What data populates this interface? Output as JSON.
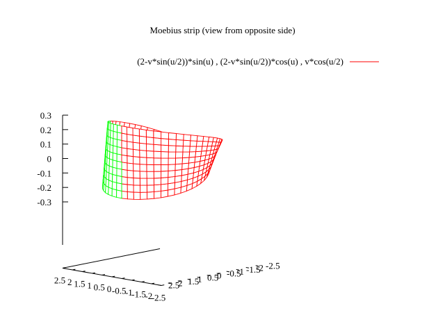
{
  "chart_data": {
    "type": "surface",
    "title": "Moebius strip (view from opposite side)",
    "legend": {
      "placement": "top-right",
      "entries": [
        {
          "label": "(2-v*sin(u/2))*sin(u) , (2-v*sin(u/2))*cos(u) , v*cos(u/2)",
          "color": "#ff0000"
        }
      ]
    },
    "series": [
      {
        "parametric": true,
        "x_expr": "(2-v*sin(u/2))*sin(u)",
        "y_expr": "(2-v*sin(u/2))*cos(u)",
        "z_expr": "v*cos(u/2)",
        "u_range": [
          0,
          6.283185
        ],
        "v_range": [
          -0.25,
          0.25
        ],
        "u_samples": 48,
        "v_samples": 10,
        "front_color": "#ff0000",
        "back_color": "#00ff00"
      }
    ],
    "x_axis": {
      "range": [
        2.5,
        -2.5
      ],
      "ticks": [
        "2.5",
        "2",
        "1.5",
        "1",
        "0.5",
        "0",
        "-0.5",
        "-1",
        "-1.5",
        "-2",
        "-2.5"
      ],
      "tick_values": [
        2.5,
        2,
        1.5,
        1,
        0.5,
        0,
        -0.5,
        -1,
        -1.5,
        -2,
        -2.5
      ]
    },
    "y_axis": {
      "range": [
        2.5,
        -2.5
      ],
      "ticks": [
        "2.5",
        "2",
        "1.5",
        "1",
        "0.5",
        "0",
        "-0.5",
        "-1",
        "-1.5",
        "-2",
        "-2.5"
      ],
      "tick_values": [
        2.5,
        2,
        1.5,
        1,
        0.5,
        0,
        -0.5,
        -1,
        -1.5,
        -2,
        -2.5
      ]
    },
    "z_axis": {
      "range": [
        -0.3,
        0.3
      ],
      "ticks": [
        "0.3",
        "0.2",
        "0.1",
        "0",
        "-0.1",
        "-0.2",
        "-0.3"
      ],
      "tick_values": [
        0.3,
        0.2,
        0.1,
        0,
        -0.1,
        -0.2,
        -0.3
      ]
    },
    "view": {
      "rot_x_deg": 60,
      "rot_z_deg": 210
    },
    "grid": false
  }
}
